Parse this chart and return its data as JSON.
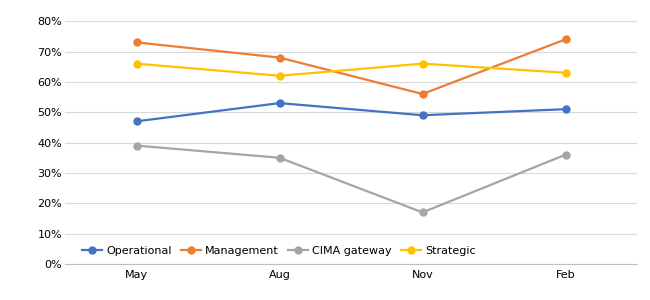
{
  "months": [
    "May",
    "Aug",
    "Nov",
    "Feb"
  ],
  "series": {
    "Operational": [
      0.47,
      0.53,
      0.49,
      0.51
    ],
    "Management": [
      0.73,
      0.68,
      0.56,
      0.74
    ],
    "CIMA gateway": [
      0.39,
      0.35,
      0.17,
      0.36
    ],
    "Strategic": [
      0.66,
      0.62,
      0.66,
      0.63
    ]
  },
  "colors": {
    "Operational": "#4472C4",
    "Management": "#ED7D31",
    "CIMA gateway": "#A5A5A5",
    "Strategic": "#FFC000"
  },
  "ylim": [
    0,
    0.84
  ],
  "yticks": [
    0.0,
    0.1,
    0.2,
    0.3,
    0.4,
    0.5,
    0.6,
    0.7,
    0.8
  ],
  "legend_order": [
    "Operational",
    "Management",
    "CIMA gateway",
    "Strategic"
  ],
  "marker": "o",
  "linewidth": 1.6,
  "markersize": 5,
  "grid_color": "#D9D9D9",
  "bg_color": "#FFFFFF",
  "tick_fontsize": 8,
  "legend_fontsize": 8
}
